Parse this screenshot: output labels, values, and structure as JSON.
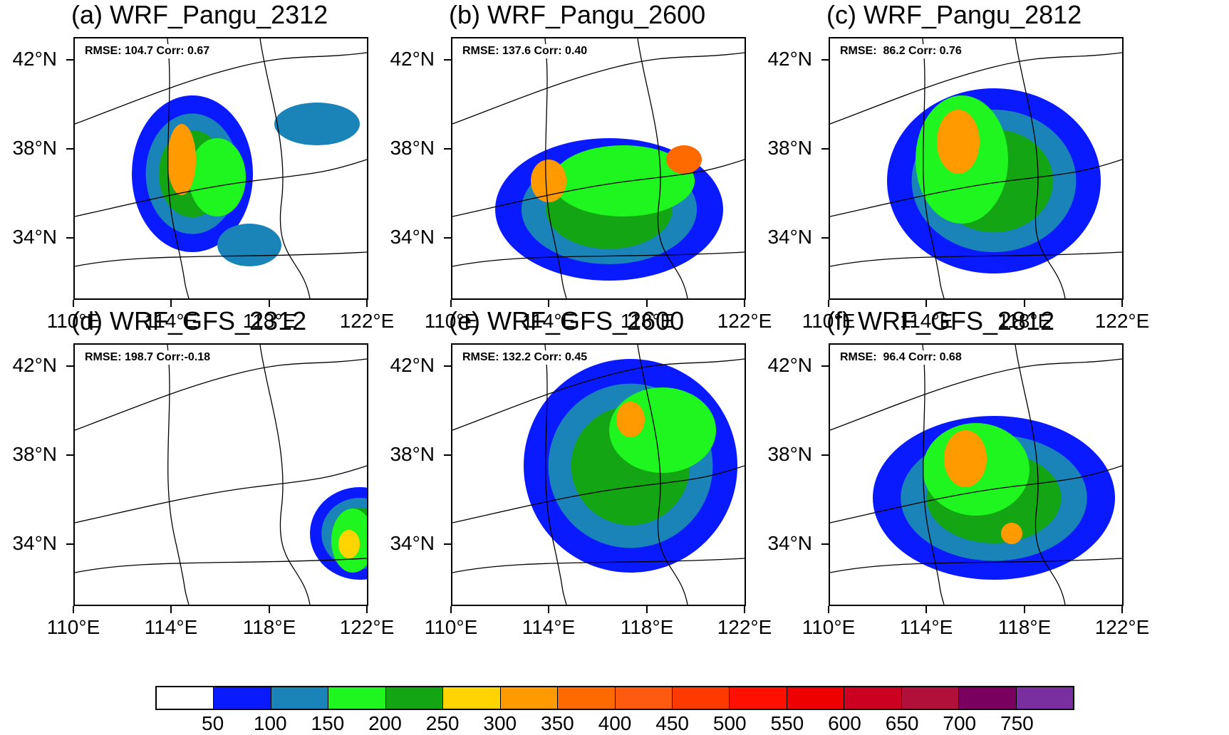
{
  "panels": [
    {
      "id": "a",
      "title": "(a) WRF_Pangu_2312",
      "stats": "RMSE: 104.7 Corr: 0.67"
    },
    {
      "id": "b",
      "title": "(b) WRF_Pangu_2600",
      "stats": "RMSE: 137.6 Corr: 0.40"
    },
    {
      "id": "c",
      "title": "(c) WRF_Pangu_2812",
      "stats": "RMSE:  86.2 Corr: 0.76"
    },
    {
      "id": "d",
      "title": "(d) WRF_GFS_2312",
      "stats": "RMSE: 198.7 Corr:-0.18"
    },
    {
      "id": "e",
      "title": "(e) WRF_GFS_2600",
      "stats": "RMSE: 132.2 Corr: 0.45"
    },
    {
      "id": "f",
      "title": "(f) WRF_GFS_2812",
      "stats": "RMSE:  96.4 Corr: 0.68"
    }
  ],
  "axes": {
    "lat_labels": [
      "42°N",
      "38°N",
      "34°N"
    ],
    "lon_labels": [
      "110°E",
      "114°E",
      "118°E",
      "122°E"
    ]
  },
  "colorbar": {
    "labels": [
      "50",
      "100",
      "150",
      "200",
      "250",
      "300",
      "350",
      "400",
      "450",
      "500",
      "550",
      "600",
      "650",
      "700",
      "750"
    ],
    "colors": [
      "#ffffff",
      "#0a1aff",
      "#1a84b8",
      "#1ff51f",
      "#13a513",
      "#ffd400",
      "#ff9a00",
      "#ff6a00",
      "#ff5a10",
      "#ff3a00",
      "#ff1000",
      "#ee0000",
      "#cc0020",
      "#b0103a",
      "#7a0060",
      "#7a2fa0"
    ]
  }
}
